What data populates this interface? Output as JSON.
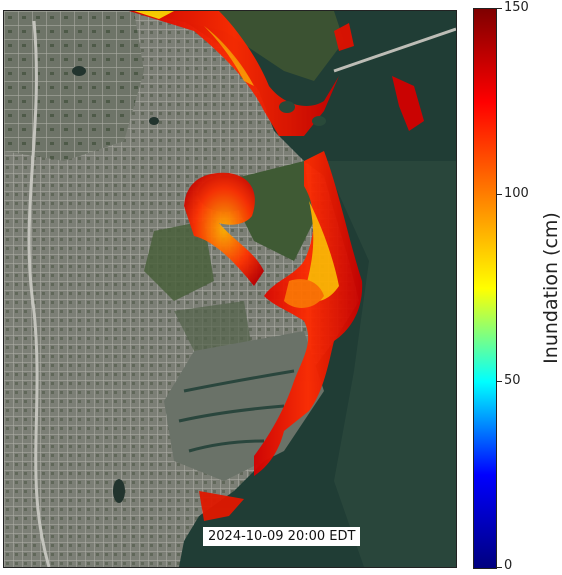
{
  "timestamp": "2024-10-09 20:00 EDT",
  "colorbar": {
    "title": "Inundation (cm)",
    "min": 0,
    "max": 150,
    "ticks": [
      "150",
      "100",
      "50",
      "0"
    ],
    "colormap": "jet",
    "stops": [
      "#00007f",
      "#0000ff",
      "#00ffff",
      "#ffff00",
      "#ff7f00",
      "#ff0000",
      "#7f0000"
    ]
  },
  "map": {
    "basemap": "satellite",
    "colors": {
      "water": "#1e3a34",
      "land": "#5a6256",
      "urban": "#8a8a84",
      "vegetation": "#3d5234"
    }
  }
}
